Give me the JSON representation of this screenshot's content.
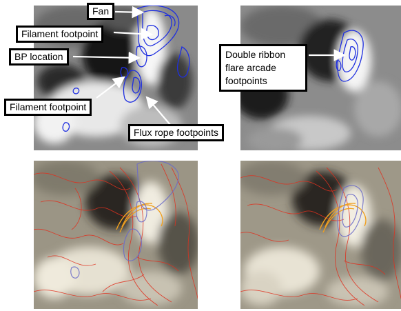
{
  "annotations": {
    "fan": "Fan",
    "filament_footpoint_1": "Filament footpoint",
    "bp_location": "BP location",
    "filament_footpoint_2": "Filament footpoint",
    "flux_rope_footpoints": "Flux rope footpoints",
    "double_ribbon": "Double ribbon flare arcade footpoints"
  },
  "colors": {
    "contour_blue": "#1f2fe0",
    "field_lines_red": "#e0301e",
    "flux_rope_orange": "#f0a020"
  }
}
